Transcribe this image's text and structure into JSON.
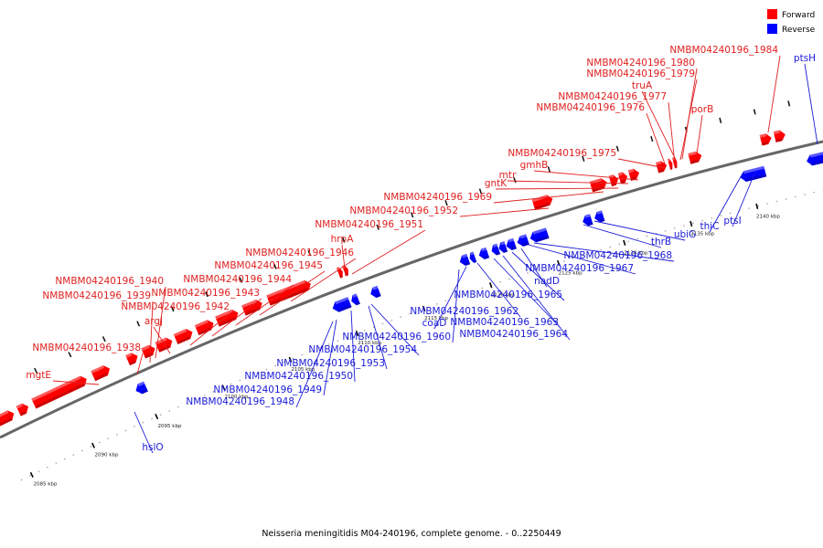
{
  "caption": "Neisseria meningitidis M04-240196, complete genome. - 0..2250449",
  "legend": [
    {
      "label": "Forward",
      "color": "#ff0000"
    },
    {
      "label": "Reverse",
      "color": "#0000ff"
    }
  ],
  "colors": {
    "forward": "#ff0000",
    "reverse": "#0000ff",
    "backbone": "#666666"
  },
  "ticks": [
    "2085 kbp",
    "2090 kbp",
    "2095 kbp",
    "2100 kbp",
    "2105 kbp",
    "2110 kbp",
    "2115 kbp",
    "2120 kbp",
    "2125 kbp",
    "2130 kbp",
    "2135 kbp",
    "2140 kbp"
  ],
  "forward_labels": [
    "mgtE",
    "NMBM04240196_1938",
    "NMBM04240196_1939",
    "NMBM04240196_1940",
    "argJ",
    "NMBM04240196_1942",
    "NMBM04240196_1943",
    "NMBM04240196_1944",
    "NMBM04240196_1945",
    "NMBM04240196_1946",
    "hrpA",
    "NMBM04240196_1951",
    "NMBM04240196_1952",
    "NMBM04240196_1969",
    "gntK",
    "mtr",
    "gmhB",
    "NMBM04240196_1975",
    "NMBM04240196_1976",
    "NMBM04240196_1977",
    "truA",
    "NMBM04240196_1979",
    "NMBM04240196_1980",
    "porB",
    "NMBM04240196_1984"
  ],
  "reverse_labels": [
    "hslO",
    "NMBM04240196_1948",
    "NMBM04240196_1949",
    "NMBM04240196_1950",
    "NMBM04240196_1953",
    "NMBM04240196_1954",
    "NMBM04240196_1960",
    "coaD",
    "NMBM04240196_1962",
    "NMBM04240196_1963",
    "NMBM04240196_1964",
    "NMBM04240196_1965",
    "nadD",
    "NMBM04240196_1967",
    "NMBM04240196_1968",
    "thrB",
    "ubiG",
    "thiC",
    "ptsI",
    "ptsH"
  ]
}
